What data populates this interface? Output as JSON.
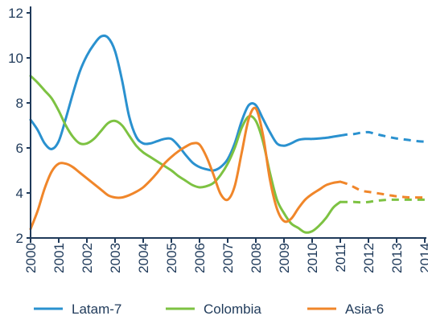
{
  "chart_data": {
    "type": "line",
    "title": "",
    "xlabel": "",
    "ylabel": "",
    "xlim": [
      2000,
      2014
    ],
    "ylim": [
      2,
      12
    ],
    "y_ticks": [
      "2",
      "4",
      "6",
      "8",
      "10",
      "12"
    ],
    "x_ticks": [
      "2000",
      "2001",
      "2002",
      "2003",
      "2004",
      "2005",
      "2006",
      "2007",
      "2008",
      "2009",
      "2010",
      "2011",
      "2012",
      "2013",
      "2014"
    ],
    "grid": false,
    "legend_position": "bottom",
    "axis_color": "#1f3a5a",
    "series": [
      {
        "name": "Latam-7",
        "color": "#2a91cf",
        "forecast_from": 2011.0,
        "points": [
          [
            2000.0,
            7.25
          ],
          [
            2000.25,
            6.8
          ],
          [
            2000.5,
            6.2
          ],
          [
            2000.75,
            5.95
          ],
          [
            2001.0,
            6.3
          ],
          [
            2001.25,
            7.3
          ],
          [
            2001.5,
            8.4
          ],
          [
            2001.75,
            9.4
          ],
          [
            2002.0,
            10.1
          ],
          [
            2002.25,
            10.6
          ],
          [
            2002.5,
            10.95
          ],
          [
            2002.75,
            10.9
          ],
          [
            2003.0,
            10.3
          ],
          [
            2003.25,
            9.0
          ],
          [
            2003.5,
            7.4
          ],
          [
            2003.75,
            6.5
          ],
          [
            2004.0,
            6.2
          ],
          [
            2004.25,
            6.2
          ],
          [
            2004.5,
            6.3
          ],
          [
            2004.75,
            6.4
          ],
          [
            2005.0,
            6.4
          ],
          [
            2005.25,
            6.1
          ],
          [
            2005.5,
            5.7
          ],
          [
            2005.75,
            5.35
          ],
          [
            2006.0,
            5.15
          ],
          [
            2006.25,
            5.05
          ],
          [
            2006.5,
            5.0
          ],
          [
            2006.75,
            5.15
          ],
          [
            2007.0,
            5.5
          ],
          [
            2007.25,
            6.2
          ],
          [
            2007.5,
            7.2
          ],
          [
            2007.75,
            7.9
          ],
          [
            2008.0,
            7.9
          ],
          [
            2008.25,
            7.3
          ],
          [
            2008.5,
            6.7
          ],
          [
            2008.75,
            6.2
          ],
          [
            2009.0,
            6.1
          ],
          [
            2009.25,
            6.2
          ],
          [
            2009.5,
            6.35
          ],
          [
            2009.75,
            6.4
          ],
          [
            2010.0,
            6.4
          ],
          [
            2010.25,
            6.42
          ],
          [
            2010.5,
            6.45
          ],
          [
            2010.75,
            6.5
          ],
          [
            2011.0,
            6.55
          ],
          [
            2011.25,
            6.6
          ],
          [
            2011.5,
            6.62
          ],
          [
            2011.75,
            6.68
          ],
          [
            2012.0,
            6.7
          ],
          [
            2012.25,
            6.62
          ],
          [
            2012.5,
            6.55
          ],
          [
            2012.75,
            6.48
          ],
          [
            2013.0,
            6.42
          ],
          [
            2013.25,
            6.38
          ],
          [
            2013.5,
            6.34
          ],
          [
            2013.75,
            6.3
          ],
          [
            2014.0,
            6.28
          ]
        ]
      },
      {
        "name": "Colombia",
        "color": "#7dc242",
        "forecast_from": 2011.0,
        "points": [
          [
            2000.0,
            9.2
          ],
          [
            2000.25,
            8.9
          ],
          [
            2000.5,
            8.55
          ],
          [
            2000.75,
            8.2
          ],
          [
            2001.0,
            7.65
          ],
          [
            2001.25,
            7.0
          ],
          [
            2001.5,
            6.5
          ],
          [
            2001.75,
            6.2
          ],
          [
            2002.0,
            6.2
          ],
          [
            2002.25,
            6.4
          ],
          [
            2002.5,
            6.75
          ],
          [
            2002.75,
            7.1
          ],
          [
            2003.0,
            7.2
          ],
          [
            2003.25,
            7.0
          ],
          [
            2003.5,
            6.55
          ],
          [
            2003.75,
            6.1
          ],
          [
            2004.0,
            5.8
          ],
          [
            2004.25,
            5.6
          ],
          [
            2004.5,
            5.4
          ],
          [
            2004.75,
            5.2
          ],
          [
            2005.0,
            5.0
          ],
          [
            2005.25,
            4.75
          ],
          [
            2005.5,
            4.55
          ],
          [
            2005.75,
            4.35
          ],
          [
            2006.0,
            4.25
          ],
          [
            2006.25,
            4.3
          ],
          [
            2006.5,
            4.45
          ],
          [
            2006.75,
            4.8
          ],
          [
            2007.0,
            5.3
          ],
          [
            2007.25,
            6.0
          ],
          [
            2007.5,
            6.9
          ],
          [
            2007.75,
            7.4
          ],
          [
            2008.0,
            7.2
          ],
          [
            2008.25,
            6.3
          ],
          [
            2008.5,
            4.9
          ],
          [
            2008.75,
            3.7
          ],
          [
            2009.0,
            3.1
          ],
          [
            2009.25,
            2.65
          ],
          [
            2009.5,
            2.45
          ],
          [
            2009.75,
            2.25
          ],
          [
            2010.0,
            2.3
          ],
          [
            2010.25,
            2.55
          ],
          [
            2010.5,
            2.9
          ],
          [
            2010.75,
            3.35
          ],
          [
            2011.0,
            3.6
          ],
          [
            2011.25,
            3.6
          ],
          [
            2011.5,
            3.6
          ],
          [
            2011.75,
            3.58
          ],
          [
            2012.0,
            3.6
          ],
          [
            2012.25,
            3.65
          ],
          [
            2012.5,
            3.68
          ],
          [
            2012.75,
            3.7
          ],
          [
            2013.0,
            3.7
          ],
          [
            2013.25,
            3.7
          ],
          [
            2013.5,
            3.7
          ],
          [
            2013.75,
            3.7
          ],
          [
            2014.0,
            3.7
          ]
        ]
      },
      {
        "name": "Asia-6",
        "color": "#f0862a",
        "forecast_from": 2011.0,
        "points": [
          [
            2000.0,
            2.4
          ],
          [
            2000.25,
            3.2
          ],
          [
            2000.5,
            4.2
          ],
          [
            2000.75,
            4.95
          ],
          [
            2001.0,
            5.3
          ],
          [
            2001.25,
            5.3
          ],
          [
            2001.5,
            5.15
          ],
          [
            2001.75,
            4.9
          ],
          [
            2002.0,
            4.65
          ],
          [
            2002.25,
            4.4
          ],
          [
            2002.5,
            4.15
          ],
          [
            2002.75,
            3.9
          ],
          [
            2003.0,
            3.8
          ],
          [
            2003.25,
            3.8
          ],
          [
            2003.5,
            3.9
          ],
          [
            2003.75,
            4.05
          ],
          [
            2004.0,
            4.25
          ],
          [
            2004.25,
            4.55
          ],
          [
            2004.5,
            4.9
          ],
          [
            2004.75,
            5.3
          ],
          [
            2005.0,
            5.6
          ],
          [
            2005.25,
            5.85
          ],
          [
            2005.5,
            6.05
          ],
          [
            2005.75,
            6.2
          ],
          [
            2006.0,
            6.15
          ],
          [
            2006.25,
            5.6
          ],
          [
            2006.5,
            4.8
          ],
          [
            2006.75,
            3.95
          ],
          [
            2007.0,
            3.7
          ],
          [
            2007.25,
            4.3
          ],
          [
            2007.5,
            5.8
          ],
          [
            2007.75,
            7.3
          ],
          [
            2008.0,
            7.75
          ],
          [
            2008.25,
            6.6
          ],
          [
            2008.5,
            4.6
          ],
          [
            2008.75,
            3.3
          ],
          [
            2009.0,
            2.75
          ],
          [
            2009.25,
            2.85
          ],
          [
            2009.5,
            3.3
          ],
          [
            2009.75,
            3.7
          ],
          [
            2010.0,
            3.95
          ],
          [
            2010.25,
            4.15
          ],
          [
            2010.5,
            4.35
          ],
          [
            2010.75,
            4.45
          ],
          [
            2011.0,
            4.5
          ],
          [
            2011.25,
            4.4
          ],
          [
            2011.5,
            4.25
          ],
          [
            2011.75,
            4.1
          ],
          [
            2012.0,
            4.05
          ],
          [
            2012.25,
            4.0
          ],
          [
            2012.5,
            3.95
          ],
          [
            2012.75,
            3.9
          ],
          [
            2013.0,
            3.85
          ],
          [
            2013.25,
            3.82
          ],
          [
            2013.5,
            3.8
          ],
          [
            2013.75,
            3.8
          ],
          [
            2014.0,
            3.8
          ]
        ]
      }
    ]
  }
}
